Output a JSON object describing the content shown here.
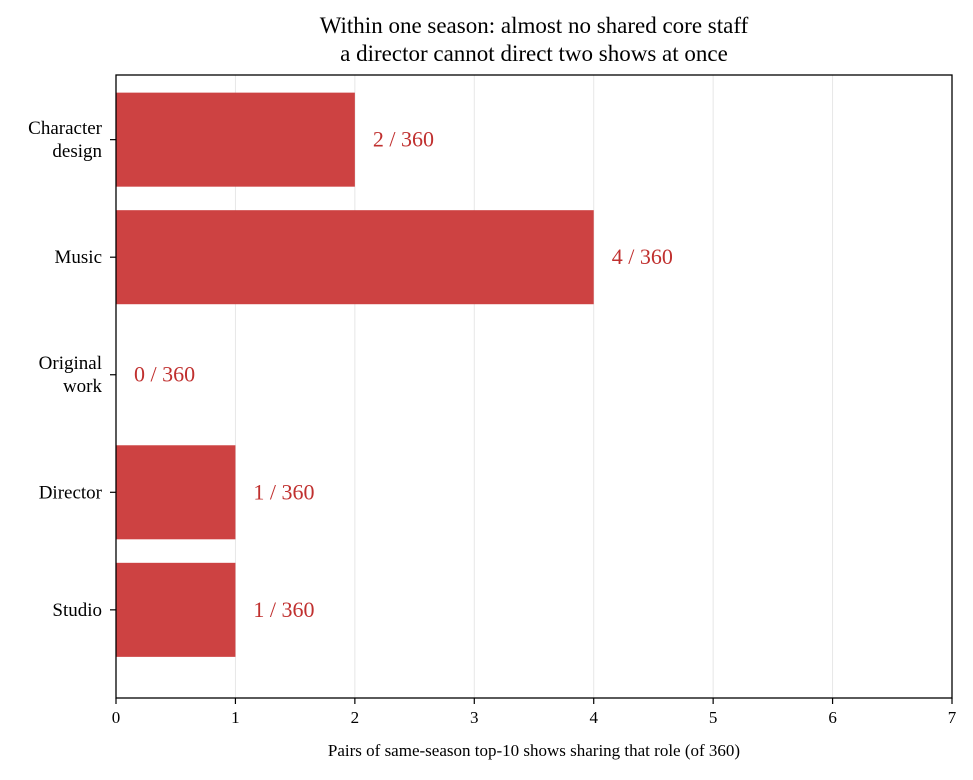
{
  "chart_data": {
    "type": "bar",
    "orientation": "horizontal",
    "title": "Within one season: almost no shared core staff\na director cannot direct two shows at once",
    "xlabel": "Pairs of same-season top-10 shows sharing that role (of 360)",
    "ylabel": "",
    "categories": [
      "Character\ndesign",
      "Music",
      "Original\nwork",
      "Director",
      "Studio"
    ],
    "values": [
      2,
      4,
      0,
      1,
      1
    ],
    "data_labels": [
      "2 / 360",
      "4 / 360",
      "0 / 360",
      "1 / 360",
      "1 / 360"
    ],
    "xlim": [
      0,
      7
    ],
    "xticks": [
      0,
      1,
      2,
      3,
      4,
      5,
      6,
      7
    ],
    "grid": "vertical",
    "legend": "none",
    "colors": {
      "bar": "#cc3e3e",
      "label": "#c0302f",
      "grid": "#e6e6e6",
      "axis": "#000000",
      "text": "#000000"
    }
  }
}
